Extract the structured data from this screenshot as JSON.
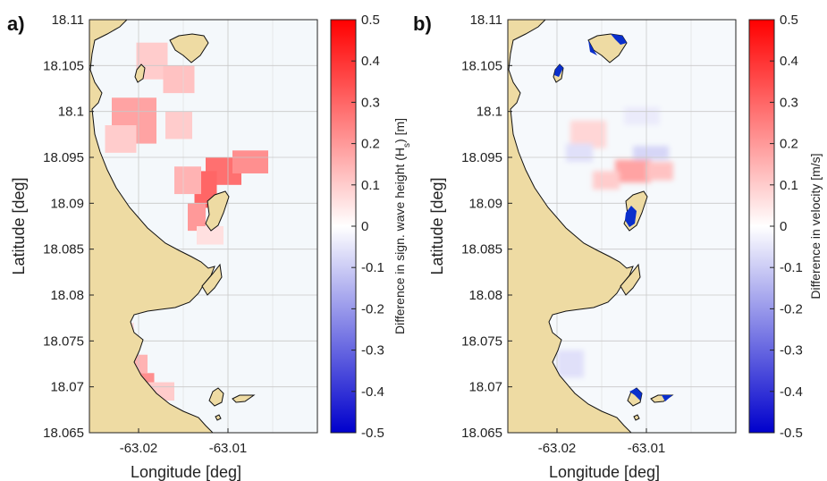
{
  "chart_data": [
    {
      "type": "heatmap",
      "panel_label": "a)",
      "xlabel": "Longitude [deg]",
      "ylabel": "Latitude [deg]",
      "xlim": [
        -63.0255,
        -63.0
      ],
      "ylim": [
        18.065,
        18.11
      ],
      "xticks": [
        -63.02,
        -63.01
      ],
      "xticklabels": [
        "-63.02",
        "-63.01"
      ],
      "yticks": [
        18.065,
        18.07,
        18.075,
        18.08,
        18.085,
        18.09,
        18.095,
        18.1,
        18.105,
        18.11
      ],
      "yticklabels": [
        "18.065",
        "18.07",
        "18.075",
        "18.08",
        "18.085",
        "18.09",
        "18.095",
        "18.1",
        "18.105",
        "18.11"
      ],
      "grid": true,
      "colorbar": {
        "label": "Difference in sign. wave height (Hs) [m]",
        "label_main": "Difference in sign. wave height (H",
        "label_sub": "s",
        "label_end": ") [m]",
        "range": [
          -0.5,
          0.5
        ],
        "ticks": [
          0.5,
          0.4,
          0.3,
          0.2,
          0.1,
          0,
          -0.1,
          -0.2,
          -0.3,
          -0.4,
          -0.5
        ],
        "ticklabels": [
          "0.5",
          "0.4",
          "0.3",
          "0.2",
          "0.1",
          "0",
          "-0.1",
          "-0.2",
          "-0.3",
          "-0.4",
          "-0.5"
        ],
        "colormap": [
          "#0000cc",
          "#ffffff",
          "#ff0000"
        ]
      },
      "field": [
        {
          "lon": -63.0185,
          "lat": 18.1055,
          "w": 0.0035,
          "h": 0.004,
          "value": 0.1
        },
        {
          "lon": -63.0155,
          "lat": 18.1035,
          "w": 0.0035,
          "h": 0.003,
          "value": 0.12
        },
        {
          "lon": -63.0205,
          "lat": 18.099,
          "w": 0.005,
          "h": 0.005,
          "value": 0.18
        },
        {
          "lon": -63.022,
          "lat": 18.097,
          "w": 0.0035,
          "h": 0.003,
          "value": 0.1
        },
        {
          "lon": -63.0155,
          "lat": 18.0985,
          "w": 0.003,
          "h": 0.003,
          "value": 0.1
        },
        {
          "lon": -63.0105,
          "lat": 18.0935,
          "w": 0.004,
          "h": 0.003,
          "value": 0.28
        },
        {
          "lon": -63.0075,
          "lat": 18.0945,
          "w": 0.004,
          "h": 0.0025,
          "value": 0.22
        },
        {
          "lon": -63.0125,
          "lat": 18.0915,
          "w": 0.0025,
          "h": 0.004,
          "value": 0.3
        },
        {
          "lon": -63.0135,
          "lat": 18.0885,
          "w": 0.002,
          "h": 0.003,
          "value": 0.2
        },
        {
          "lon": -63.0145,
          "lat": 18.0925,
          "w": 0.003,
          "h": 0.003,
          "value": 0.15
        },
        {
          "lon": -63.012,
          "lat": 18.0865,
          "w": 0.003,
          "h": 0.002,
          "value": 0.06
        },
        {
          "lon": -63.0195,
          "lat": 18.0705,
          "w": 0.0025,
          "h": 0.002,
          "value": 0.22
        },
        {
          "lon": -63.0205,
          "lat": 18.0725,
          "w": 0.003,
          "h": 0.002,
          "value": 0.15
        },
        {
          "lon": -63.0175,
          "lat": 18.0695,
          "w": 0.003,
          "h": 0.002,
          "value": 0.1
        },
        {
          "lon": -63.0215,
          "lat": 18.0755,
          "w": 0.002,
          "h": 0.003,
          "value": 0.06
        }
      ]
    },
    {
      "type": "heatmap",
      "panel_label": "b)",
      "xlabel": "Longitude [deg]",
      "ylabel": "Latitude [deg]",
      "xlim": [
        -63.0255,
        -63.0
      ],
      "ylim": [
        18.065,
        18.11
      ],
      "xticks": [
        -63.02,
        -63.01
      ],
      "xticklabels": [
        "-63.02",
        "-63.01"
      ],
      "yticks": [
        18.065,
        18.07,
        18.075,
        18.08,
        18.085,
        18.09,
        18.095,
        18.1,
        18.105,
        18.11
      ],
      "yticklabels": [
        "18.065",
        "18.07",
        "18.075",
        "18.08",
        "18.085",
        "18.09",
        "18.095",
        "18.1",
        "18.105",
        "18.11"
      ],
      "grid": true,
      "colorbar": {
        "label": "Difference in velocity [m/s]",
        "range": [
          -0.5,
          0.5
        ],
        "ticks": [
          0.5,
          0.4,
          0.3,
          0.2,
          0.1,
          0,
          -0.1,
          -0.2,
          -0.3,
          -0.4,
          -0.5
        ],
        "ticklabels": [
          "0.5",
          "0.4",
          "0.3",
          "0.2",
          "0.1",
          "0",
          "-0.1",
          "-0.2",
          "-0.3",
          "-0.4",
          "-0.5"
        ],
        "colormap": [
          "#0000cc",
          "#ffffff",
          "#ff0000"
        ]
      },
      "field": [
        {
          "lon": -63.0115,
          "lat": 18.0935,
          "w": 0.004,
          "h": 0.0025,
          "value": 0.18
        },
        {
          "lon": -63.0085,
          "lat": 18.0935,
          "w": 0.003,
          "h": 0.002,
          "value": 0.12
        },
        {
          "lon": -63.0145,
          "lat": 18.0925,
          "w": 0.003,
          "h": 0.002,
          "value": 0.1
        },
        {
          "lon": -63.0165,
          "lat": 18.0975,
          "w": 0.004,
          "h": 0.003,
          "value": 0.08
        },
        {
          "lon": -63.0095,
          "lat": 18.0955,
          "w": 0.004,
          "h": 0.0015,
          "value": -0.08
        },
        {
          "lon": -63.0175,
          "lat": 18.0955,
          "w": 0.003,
          "h": 0.002,
          "value": -0.06
        },
        {
          "lon": -63.0105,
          "lat": 18.0995,
          "w": 0.004,
          "h": 0.002,
          "value": -0.04
        },
        {
          "lon": -63.0185,
          "lat": 18.0725,
          "w": 0.003,
          "h": 0.003,
          "value": -0.06
        },
        {
          "lon": -63.0205,
          "lat": 18.0695,
          "w": 0.002,
          "h": 0.002,
          "value": -0.1
        }
      ]
    }
  ]
}
